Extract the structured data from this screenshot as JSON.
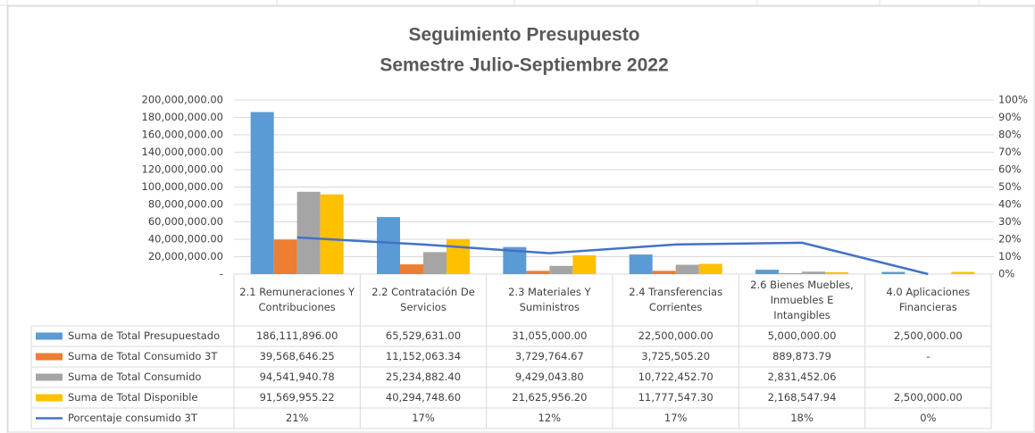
{
  "chart_data": {
    "type": "bar",
    "title": "Seguimiento Presupuesto",
    "subtitle": "Semestre Julio-Septiembre 2022",
    "categories": [
      "2.1 Remuneraciones Y Contribuciones",
      "2.2 Contratación De Servicios",
      "2.3 Materiales Y Suministros",
      "2.4 Transferencias Corrientes",
      "2.6 Bienes Muebles, Inmuebles E Intangibles",
      "4.0 Aplicaciones Financieras"
    ],
    "series": [
      {
        "name": "Suma de Total Presupuestado",
        "color": "#5b9bd5",
        "values": [
          186111896.0,
          65529631.0,
          31055000.0,
          22500000.0,
          5000000.0,
          2500000.0
        ],
        "value_labels": [
          "186,111,896.00",
          "65,529,631.00",
          "31,055,000.00",
          "22,500,000.00",
          "5,000,000.00",
          "2,500,000.00"
        ]
      },
      {
        "name": "Suma de Total Consumido 3T",
        "color": "#ed7d31",
        "values": [
          39568646.25,
          11152063.34,
          3729764.67,
          3725505.2,
          889873.79,
          0
        ],
        "value_labels": [
          "39,568,646.25",
          "11,152,063.34",
          "3,729,764.67",
          "3,725,505.20",
          "889,873.79",
          "-"
        ]
      },
      {
        "name": "Suma de Total Consumido",
        "color": "#a5a5a5",
        "values": [
          94541940.78,
          25234882.4,
          9429043.8,
          10722452.7,
          2831452.06,
          null
        ],
        "value_labels": [
          "94,541,940.78",
          "25,234,882.40",
          "9,429,043.80",
          "10,722,452.70",
          "2,831,452.06",
          null
        ]
      },
      {
        "name": "Suma de Total Disponible",
        "color": "#ffc000",
        "values": [
          91569955.22,
          40294748.6,
          21625956.2,
          11777547.3,
          2168547.94,
          2500000.0
        ],
        "value_labels": [
          "91,569,955.22",
          "40,294,748.60",
          "21,625,956.20",
          "11,777,547.30",
          "2,168,547.94",
          "2,500,000.00"
        ]
      },
      {
        "name": "Porcentaje consumido 3T",
        "color": "#4472c4",
        "type": "line",
        "axis": "y2",
        "values": [
          21,
          17,
          12,
          17,
          18,
          0
        ],
        "value_labels": [
          "21%",
          "17%",
          "12%",
          "17%",
          "18%",
          "0%"
        ]
      }
    ],
    "ylim": [
      0,
      200000000
    ],
    "yticks": [
      {
        "value": 0,
        "label": "-"
      },
      {
        "value": 20000000,
        "label": "20,000,000.00"
      },
      {
        "value": 40000000,
        "label": "40,000,000.00"
      },
      {
        "value": 60000000,
        "label": "60,000,000.00"
      },
      {
        "value": 80000000,
        "label": "80,000,000.00"
      },
      {
        "value": 100000000,
        "label": "100,000,000.00"
      },
      {
        "value": 120000000,
        "label": "120,000,000.00"
      },
      {
        "value": 140000000,
        "label": "140,000,000.00"
      },
      {
        "value": 160000000,
        "label": "160,000,000.00"
      },
      {
        "value": 180000000,
        "label": "180,000,000.00"
      },
      {
        "value": 200000000,
        "label": "200,000,000.00"
      }
    ],
    "y2lim": [
      0,
      100
    ],
    "y2ticks": [
      {
        "value": 0,
        "label": "0%"
      },
      {
        "value": 10,
        "label": "10%"
      },
      {
        "value": 20,
        "label": "20%"
      },
      {
        "value": 30,
        "label": "30%"
      },
      {
        "value": 40,
        "label": "40%"
      },
      {
        "value": 50,
        "label": "50%"
      },
      {
        "value": 60,
        "label": "60%"
      },
      {
        "value": 70,
        "label": "70%"
      },
      {
        "value": 80,
        "label": "80%"
      },
      {
        "value": 90,
        "label": "90%"
      },
      {
        "value": 100,
        "label": "100%"
      }
    ],
    "grid": true
  }
}
